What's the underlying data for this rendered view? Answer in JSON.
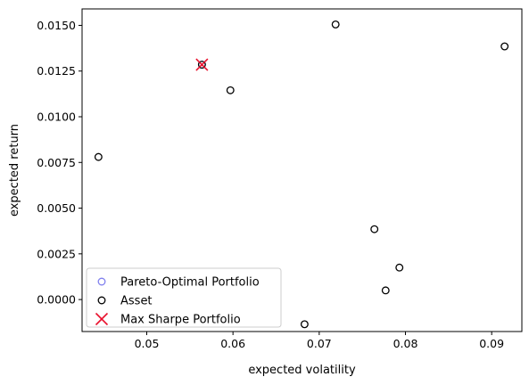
{
  "chart_data": {
    "type": "scatter",
    "xlabel": "expected volatility",
    "ylabel": "expected return",
    "xlim": [
      0.0425,
      0.0935
    ],
    "ylim": [
      -0.00175,
      0.0159
    ],
    "x_ticks": [
      0.05,
      0.06,
      0.07,
      0.08,
      0.09
    ],
    "x_tick_labels": [
      "0.05",
      "0.06",
      "0.07",
      "0.08",
      "0.09"
    ],
    "y_ticks": [
      0.0,
      0.0025,
      0.005,
      0.0075,
      0.01,
      0.0125,
      0.015
    ],
    "y_tick_labels": [
      "0.0000",
      "0.0025",
      "0.0050",
      "0.0075",
      "0.0100",
      "0.0125",
      "0.0150"
    ],
    "grid": false,
    "legend_position": "lower-left",
    "series": [
      {
        "name": "Pareto-Optimal Portfolio",
        "marker": "open-circle",
        "color": "#8080ee",
        "points": [
          [
            0.0564,
            0.01285
          ]
        ]
      },
      {
        "name": "Asset",
        "marker": "open-circle",
        "color": "#000000",
        "points": [
          [
            0.0444,
            0.0078
          ],
          [
            0.0564,
            0.01285
          ],
          [
            0.0597,
            0.01145
          ],
          [
            0.0683,
            -0.00135
          ],
          [
            0.0719,
            0.01505
          ],
          [
            0.0764,
            0.00385
          ],
          [
            0.0777,
            0.0005
          ],
          [
            0.0793,
            0.00175
          ],
          [
            0.0915,
            0.01385
          ]
        ]
      },
      {
        "name": "Max Sharpe Portfolio",
        "marker": "x",
        "color": "#e8112d",
        "points": [
          [
            0.0564,
            0.01285
          ]
        ]
      }
    ]
  }
}
